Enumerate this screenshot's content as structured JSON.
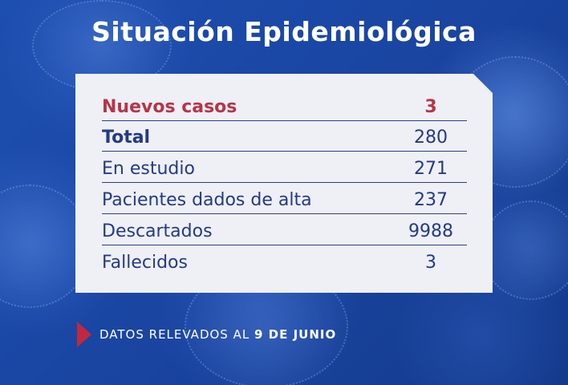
{
  "title": "Situación Epidemiológica",
  "table": {
    "rows": [
      {
        "label": "Nuevos casos",
        "value": "3"
      },
      {
        "label": "Total",
        "value": "280"
      },
      {
        "label": "En estudio",
        "value": "271"
      },
      {
        "label": "Pacientes dados de alta",
        "value": "237"
      },
      {
        "label": "Descartados",
        "value": "9988"
      },
      {
        "label": "Fallecidos",
        "value": "3"
      }
    ]
  },
  "footer": {
    "text": "DATOS RELEVADOS AL ",
    "date": "9 DE JUNIO"
  },
  "colors": {
    "background": "#1a46a3",
    "card": "#eef0f5",
    "highlight": "#b8344a",
    "text": "#243a86",
    "arrow": "#c2283d"
  },
  "icons": {
    "footer_marker": "triangle-arrow-right"
  }
}
